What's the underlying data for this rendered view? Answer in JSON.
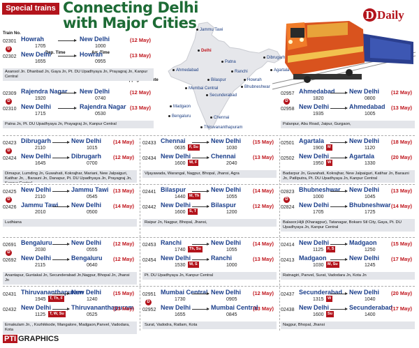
{
  "header": {
    "badge": "Special trains",
    "title_line1": "Connecting Delhi",
    "title_line2": "with Major Cities",
    "daily": "Daily",
    "daily_initial": "D"
  },
  "labels": {
    "train_no": "Train No.",
    "dep_time": "Dep. Time",
    "arr_time": "Arr. Time",
    "stoppage": "Stoppage Enroute"
  },
  "map": {
    "cities": [
      {
        "name": "Jammu Tawi",
        "red": false
      },
      {
        "name": "Delhi",
        "red": true
      },
      {
        "name": "Ahmedabad",
        "red": false
      },
      {
        "name": "Patna",
        "red": false
      },
      {
        "name": "Dibrugarh",
        "red": false
      },
      {
        "name": "Agartala",
        "red": false
      },
      {
        "name": "Ranchi",
        "red": false
      },
      {
        "name": "Howrah",
        "red": false
      },
      {
        "name": "Bilaspur",
        "red": false
      },
      {
        "name": "Bhubneshwar",
        "red": false
      },
      {
        "name": "Mumbai Central",
        "red": false
      },
      {
        "name": "Madgaon",
        "red": false
      },
      {
        "name": "Secunderabad",
        "red": false
      },
      {
        "name": "Bengaluru",
        "red": false
      },
      {
        "name": "Chennai",
        "red": false
      },
      {
        "name": "Thiruvananthapuram",
        "red": false
      }
    ]
  },
  "entries": [
    {
      "legs": [
        {
          "no": "02301",
          "from": "Howrah",
          "dep": "1705",
          "to": "New Delhi",
          "arr": "1000",
          "date": "(12 May)"
        },
        {
          "no": "02302",
          "from": "New Delhi",
          "dep": "1655",
          "to": "Howrah",
          "arr": "0955",
          "date": "(13 May)"
        }
      ],
      "dcirc": true,
      "tag": "",
      "enroute": "Asansol Jn. Dhanbad Jn, Gaya Jn, Pt. DU Upadhyaya Jn, Prayagraj Jn, Kanpur Central"
    },
    {
      "legs": [
        {
          "no": "02309",
          "from": "Rajendra Nagar",
          "dep": "1920",
          "to": "New Delhi",
          "arr": "0740",
          "date": "(12 May)"
        },
        {
          "no": "02310",
          "from": "New Delhi",
          "dep": "1715",
          "to": "Rajendra Nagar",
          "arr": "0530",
          "date": "(13 May)"
        }
      ],
      "dcirc": true,
      "tag": "",
      "enroute": "Patna Jn, Pt. DU Upadhyaya Jn, Prayagraj Jn, Kanpur Central"
    },
    {
      "legs": [
        {
          "no": "02957",
          "from": "Ahmedabad",
          "dep": "1820",
          "to": "New Delhi",
          "arr": "0800",
          "date": "(12 May)"
        },
        {
          "no": "02958",
          "from": "New Delhi",
          "dep": "1935",
          "to": "Ahmedabad",
          "arr": "1005",
          "date": "(13 May)"
        }
      ],
      "dcirc": true,
      "tag": "",
      "enroute": "Palanpur, Abu Road, Jaipur, Gurgaon,"
    },
    {
      "legs": [
        {
          "no": "02423",
          "from": "Dibrugarh",
          "dep": "2110",
          "to": "New Delhi",
          "arr": "1015",
          "date": "(14 May)"
        },
        {
          "no": "02424",
          "from": "New Delhi",
          "dep": "1645",
          "to": "Dibrugarh",
          "arr": "0700",
          "date": "(12 May)"
        }
      ],
      "dcirc": true,
      "tag": "",
      "enroute": "Dimapur, Lumding Jn, Guwahati, Kokrajhar, Mariani, New Jalpaiguri, Katihar Jn, , Barauni Jn, Danapur, Pt. DU Upadhyaya Jn, Prayagraj Jn, Kanpur Central"
    },
    {
      "legs": [
        {
          "no": "02433",
          "from": "Chennai",
          "dep": "0635",
          "to": "New Delhi",
          "arr": "1030",
          "date": "(15 May)",
          "tag": "F, Su"
        },
        {
          "no": "02434",
          "from": "New Delhi",
          "dep": "1600",
          "to": "Chennai",
          "arr": "2040",
          "date": "(13 May)",
          "tag": "W, F"
        }
      ],
      "dcirc": false,
      "tag": "",
      "enroute": "Vijayawada, Warangal, Nagpur, Bhopal, Jhansi, Agra"
    },
    {
      "legs": [
        {
          "no": "02501",
          "from": "Agartala",
          "dep": "1900",
          "to": "New Delhi",
          "arr": "1120",
          "date": "(18 May)",
          "tag": "M"
        },
        {
          "no": "02502",
          "from": "New Delhi",
          "dep": "1950",
          "to": "Agartala",
          "arr": "1330",
          "date": "(20 May)",
          "tag": "W"
        }
      ],
      "dcirc": false,
      "tag": "",
      "enroute": "Badarpur Jn, Guwahati, Kokrajhar, New Jalpaiguri, Katihar Jn, Barauni Jn, Patliputra, Pt. DU Upadhyaya Jn, Kanpur Central"
    },
    {
      "legs": [
        {
          "no": "02425",
          "from": "New Delhi",
          "dep": "2110",
          "to": "Jammu Tawi",
          "arr": "0545",
          "date": "(13 May)"
        },
        {
          "no": "02426",
          "from": "Jammu Tawi",
          "dep": "2010",
          "to": "New Delhi",
          "arr": "0500",
          "date": "(14 May)"
        }
      ],
      "dcirc": true,
      "tag": "",
      "enroute": "Ludhiana"
    },
    {
      "legs": [
        {
          "no": "02441",
          "from": "Bilaspur",
          "dep": "1440",
          "to": "New Delhi",
          "arr": "1055",
          "date": "(14 May)",
          "tag": "M, Th"
        },
        {
          "no": "02442",
          "from": "New Delhi",
          "dep": "1600",
          "to": "Bilaspur",
          "arr": "1200",
          "date": "(12 May)",
          "tag": "S, T"
        }
      ],
      "dcirc": false,
      "tag": "",
      "enroute": "Raipur Jn, Nagpur, Bhopal, Jhansi,"
    },
    {
      "legs": [
        {
          "no": "02823",
          "from": "Bhubneshwar",
          "dep": "1000",
          "to": "New Delhi",
          "arr": "1045",
          "date": "(13 May)"
        },
        {
          "no": "02824",
          "from": "New Delhi",
          "dep": "1705",
          "to": "Bhubneshwar",
          "arr": "1725",
          "date": "(14 May)"
        }
      ],
      "dcirc": true,
      "tag": "",
      "enroute": "Balasor,Hijli (Kharagpur), Tatanagar, Bokaro Stl City, Gaya, Pt. DU Upadhyaya Jn, Kanpur Central"
    },
    {
      "legs": [
        {
          "no": "02691",
          "from": "Bengaluru",
          "dep": "2030",
          "to": "New Delhi",
          "arr": "0555",
          "date": "(12 May)"
        },
        {
          "no": "02692",
          "from": "New Delhi",
          "dep": "2115",
          "to": "Bengaluru",
          "arr": "0640",
          "date": "(12 May)"
        }
      ],
      "dcirc": true,
      "tag": "",
      "enroute": "Anantapur, Guntakal Jn, Secunderabad Jn,Nagpur, Bhopal Jn, Jhansi Jn"
    },
    {
      "legs": [
        {
          "no": "02453",
          "from": "Ranchi",
          "dep": "1740",
          "to": "New Delhi",
          "arr": "1055",
          "date": "(14 May)",
          "tag": "Th, Su"
        },
        {
          "no": "02454",
          "from": "New Delhi",
          "dep": "1530",
          "to": "Ranchi",
          "arr": "1000",
          "date": "(13 May)",
          "tag": "W, S"
        }
      ],
      "dcirc": false,
      "tag": "",
      "enroute": "Pt. DU Upadhyaya Jn, Kanpur Central"
    },
    {
      "legs": [
        {
          "no": "02414",
          "from": "New Delhi",
          "dep": "1125",
          "to": "Madgaon",
          "arr": "1250",
          "date": "(15 May)",
          "tag": "F, S"
        },
        {
          "no": "02413",
          "from": "Madgaon",
          "dep": "1030",
          "to": "New Delhi",
          "arr": "1245",
          "date": "(17 May)",
          "tag": "M, Su"
        }
      ],
      "dcirc": false,
      "tag": "",
      "enroute": "Ratnagiri, Panvel, Surat, Vadodara Jn, Kota Jn"
    },
    {
      "legs": [
        {
          "no": "02431",
          "from": "Thiruvananthapuram",
          "dep": "1945",
          "to": "New Delhi",
          "arr": "1240",
          "date": "(15 May)",
          "tag": "T, Th, F"
        },
        {
          "no": "02432",
          "from": "New Delhi",
          "dep": "1125",
          "to": "Thiruvananthapuram",
          "arr": "0525",
          "date": "(13 May)",
          "tag": "T, W, Su"
        }
      ],
      "dcirc": false,
      "tag": "",
      "enroute": "Ernakulam Jn, , Kozhikkode, Mangalore, Madgaon,Panvel, Vadodara, Kota"
    },
    {
      "legs": [
        {
          "no": "02951",
          "from": "Mumbai Central",
          "dep": "1730",
          "to": "New Delhi",
          "arr": "0905",
          "date": "(12 May)"
        },
        {
          "no": "02952",
          "from": "New Delhi",
          "dep": "1655",
          "to": "Mumbai Central",
          "arr": "0845",
          "date": "(13 May)"
        }
      ],
      "dcirc": true,
      "tag": "",
      "enroute": "Surat, Vadodra, Ratlam, Kota"
    },
    {
      "legs": [
        {
          "no": "02437",
          "from": "Secunderabad",
          "dep": "1315",
          "to": "New Delhi",
          "arr": "1040",
          "date": "(20 May)",
          "tag": "W"
        },
        {
          "no": "02438",
          "from": "New Delhi",
          "dep": "1600",
          "to": "Secunderabad",
          "arr": "1400",
          "date": "(17 May)",
          "tag": "Su"
        }
      ],
      "dcirc": false,
      "tag": "",
      "enroute": "Nagpur, Bhopal, Jhansi"
    }
  ],
  "footer": {
    "pti": "PTI",
    "graphics": "GRAPHICS"
  },
  "colors": {
    "accent_red": "#b3141c",
    "title_green": "#1d6b35",
    "station_blue": "#1b3f8b",
    "enroute_bg": "#e3e5ea"
  }
}
